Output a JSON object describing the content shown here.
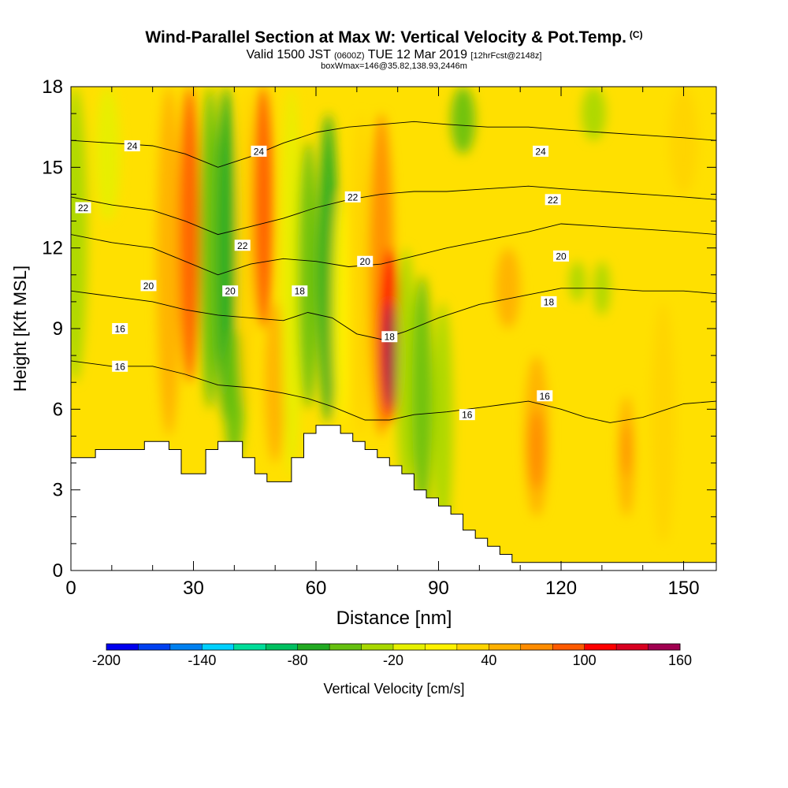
{
  "header": {
    "title": "Wind-Parallel Section at Max W: Vertical Velocity & Pot.Temp.",
    "copyright": "(C)",
    "valid_prefix": "Valid 1500 JST",
    "valid_utc": "(0600Z)",
    "valid_date": "TUE 12 Mar 2019",
    "forecast": "[12hrFcst@2148z]",
    "boxinfo": "boxWmax=146@35.82,138.93,2446m"
  },
  "chart_data": {
    "type": "heatmap",
    "title": "Wind-Parallel Section at Max W: Vertical Velocity & Pot.Temp.",
    "xlabel": "Distance [nm]",
    "ylabel": "Height [Kft MSL]",
    "xlim": [
      0,
      158
    ],
    "ylim": [
      0,
      18
    ],
    "x_ticks": [
      0,
      30,
      60,
      90,
      120,
      150
    ],
    "y_ticks": [
      0,
      3,
      6,
      9,
      12,
      15,
      18
    ],
    "colorbar": {
      "label": "Vertical Velocity [cm/s]",
      "min": -200,
      "max": 160,
      "step": 20,
      "tick_labels": [
        "-200",
        "-140",
        "-80",
        "-20",
        "40",
        "100",
        "160"
      ],
      "colors": [
        "#0000ee",
        "#0040f0",
        "#0080f0",
        "#00d0ff",
        "#00dd99",
        "#00c060",
        "#22aa22",
        "#66c010",
        "#a8d800",
        "#e6f000",
        "#fff200",
        "#ffd400",
        "#ffb000",
        "#ff8c00",
        "#ff5a00",
        "#ff0000",
        "#d80020",
        "#a00050",
        "#500090"
      ]
    },
    "velocity_bands": [
      {
        "x": 1,
        "y0": 7,
        "y1": 18,
        "w": 3,
        "v": -30
      },
      {
        "x": 9,
        "y0": 13,
        "y1": 18,
        "w": 3,
        "v": -20
      },
      {
        "x": 24,
        "y0": 5,
        "y1": 18,
        "w": 3,
        "v": 50
      },
      {
        "x": 29,
        "y0": 7,
        "y1": 18,
        "w": 2.5,
        "v": 90
      },
      {
        "x": 34,
        "y0": 6,
        "y1": 18,
        "w": 2.5,
        "v": -50
      },
      {
        "x": 38,
        "y0": 5.5,
        "y1": 18,
        "w": 2.5,
        "v": -80
      },
      {
        "x": 40,
        "y0": 4,
        "y1": 9,
        "w": 2.5,
        "v": -60
      },
      {
        "x": 43,
        "y0": 6,
        "y1": 18,
        "w": 2,
        "v": 20
      },
      {
        "x": 47,
        "y0": 9,
        "y1": 18,
        "w": 2.5,
        "v": 90
      },
      {
        "x": 50,
        "y0": 4,
        "y1": 10,
        "w": 2.5,
        "v": 40
      },
      {
        "x": 54,
        "y0": 3.5,
        "y1": 18,
        "w": 2.5,
        "v": -20
      },
      {
        "x": 58,
        "y0": 6,
        "y1": 16,
        "w": 2.5,
        "v": -60
      },
      {
        "x": 63,
        "y0": 5.5,
        "y1": 17,
        "w": 2.5,
        "v": -80
      },
      {
        "x": 66,
        "y0": 5.5,
        "y1": 14,
        "w": 2,
        "v": 10
      },
      {
        "x": 71,
        "y0": 5,
        "y1": 17,
        "w": 2.5,
        "v": 30
      },
      {
        "x": 76,
        "y0": 5,
        "y1": 17,
        "w": 3,
        "v": 70
      },
      {
        "x": 78,
        "y0": 5.5,
        "y1": 12,
        "w": 2.5,
        "v": 110
      },
      {
        "x": 78,
        "y0": 6,
        "y1": 10,
        "w": 1.5,
        "v": 150
      },
      {
        "x": 82,
        "y0": 3,
        "y1": 12,
        "w": 2.5,
        "v": -30
      },
      {
        "x": 86,
        "y0": 2,
        "y1": 11,
        "w": 2.5,
        "v": -60
      },
      {
        "x": 91,
        "y0": 1,
        "y1": 10,
        "w": 2.5,
        "v": -30
      },
      {
        "x": 96,
        "y0": 15.5,
        "y1": 18,
        "w": 3,
        "v": -60
      },
      {
        "x": 107,
        "y0": 9,
        "y1": 12,
        "w": 3,
        "v": 40
      },
      {
        "x": 114,
        "y0": 2,
        "y1": 8,
        "w": 3,
        "v": 40
      },
      {
        "x": 114,
        "y0": 3,
        "y1": 6,
        "w": 2,
        "v": 60
      },
      {
        "x": 124,
        "y0": 10,
        "y1": 11.5,
        "w": 2,
        "v": -30
      },
      {
        "x": 130,
        "y0": 9.5,
        "y1": 11.5,
        "w": 2,
        "v": -30
      },
      {
        "x": 128,
        "y0": 16,
        "y1": 18,
        "w": 3,
        "v": -30
      },
      {
        "x": 136,
        "y0": 2,
        "y1": 6.5,
        "w": 2,
        "v": 40
      },
      {
        "x": 136,
        "y0": 3.5,
        "y1": 5.5,
        "w": 1,
        "v": 60
      },
      {
        "x": 145,
        "y0": 1,
        "y1": 10,
        "w": 3,
        "v": 30
      },
      {
        "x": 150,
        "y0": 14,
        "y1": 18,
        "w": 3.5,
        "v": 30
      }
    ],
    "terrain": [
      [
        0,
        4.2
      ],
      [
        6,
        4.2
      ],
      [
        6,
        4.5
      ],
      [
        18,
        4.5
      ],
      [
        18,
        4.8
      ],
      [
        24,
        4.8
      ],
      [
        24,
        4.5
      ],
      [
        27,
        4.5
      ],
      [
        27,
        3.6
      ],
      [
        33,
        3.6
      ],
      [
        33,
        4.5
      ],
      [
        36,
        4.5
      ],
      [
        36,
        4.8
      ],
      [
        42,
        4.8
      ],
      [
        42,
        4.2
      ],
      [
        45,
        4.2
      ],
      [
        45,
        3.6
      ],
      [
        48,
        3.6
      ],
      [
        48,
        3.3
      ],
      [
        54,
        3.3
      ],
      [
        54,
        4.2
      ],
      [
        57,
        4.2
      ],
      [
        57,
        5.1
      ],
      [
        60,
        5.1
      ],
      [
        60,
        5.4
      ],
      [
        66,
        5.4
      ],
      [
        66,
        5.1
      ],
      [
        69,
        5.1
      ],
      [
        69,
        4.8
      ],
      [
        72,
        4.8
      ],
      [
        72,
        4.5
      ],
      [
        75,
        4.5
      ],
      [
        75,
        4.2
      ],
      [
        78,
        4.2
      ],
      [
        78,
        3.9
      ],
      [
        81,
        3.9
      ],
      [
        81,
        3.6
      ],
      [
        84,
        3.6
      ],
      [
        84,
        3
      ],
      [
        87,
        3
      ],
      [
        87,
        2.7
      ],
      [
        90,
        2.7
      ],
      [
        90,
        2.4
      ],
      [
        93,
        2.4
      ],
      [
        93,
        2.1
      ],
      [
        96,
        2.1
      ],
      [
        96,
        1.5
      ],
      [
        99,
        1.5
      ],
      [
        99,
        1.2
      ],
      [
        102,
        1.2
      ],
      [
        102,
        0.9
      ],
      [
        105,
        0.9
      ],
      [
        105,
        0.6
      ],
      [
        108,
        0.6
      ],
      [
        108,
        0.3
      ],
      [
        158,
        0.3
      ]
    ],
    "contours": [
      {
        "label": "16",
        "points": [
          [
            0,
            7.8
          ],
          [
            10,
            7.6
          ],
          [
            20,
            7.6
          ],
          [
            28,
            7.3
          ],
          [
            36,
            6.9
          ],
          [
            44,
            6.8
          ],
          [
            52,
            6.6
          ],
          [
            58,
            6.4
          ],
          [
            64,
            6.1
          ],
          [
            72,
            5.6
          ],
          [
            78,
            5.6
          ],
          [
            84,
            5.8
          ],
          [
            92,
            5.9
          ],
          [
            102,
            6.1
          ],
          [
            112,
            6.3
          ],
          [
            120,
            6.0
          ],
          [
            126,
            5.7
          ],
          [
            132,
            5.5
          ],
          [
            140,
            5.7
          ],
          [
            150,
            6.2
          ],
          [
            158,
            6.3
          ]
        ]
      },
      {
        "label": "18",
        "points": [
          [
            0,
            10.4
          ],
          [
            10,
            10.2
          ],
          [
            20,
            10
          ],
          [
            28,
            9.7
          ],
          [
            36,
            9.5
          ],
          [
            44,
            9.4
          ],
          [
            52,
            9.3
          ],
          [
            58,
            9.6
          ],
          [
            64,
            9.4
          ],
          [
            70,
            8.8
          ],
          [
            76,
            8.6
          ],
          [
            82,
            8.9
          ],
          [
            90,
            9.4
          ],
          [
            100,
            9.9
          ],
          [
            110,
            10.2
          ],
          [
            120,
            10.5
          ],
          [
            130,
            10.5
          ],
          [
            140,
            10.4
          ],
          [
            150,
            10.4
          ],
          [
            158,
            10.3
          ]
        ]
      },
      {
        "label": "20",
        "points": [
          [
            0,
            12.5
          ],
          [
            10,
            12.2
          ],
          [
            20,
            12
          ],
          [
            28,
            11.5
          ],
          [
            36,
            11
          ],
          [
            44,
            11.4
          ],
          [
            52,
            11.6
          ],
          [
            60,
            11.5
          ],
          [
            68,
            11.3
          ],
          [
            76,
            11.4
          ],
          [
            84,
            11.7
          ],
          [
            92,
            12
          ],
          [
            102,
            12.3
          ],
          [
            112,
            12.6
          ],
          [
            120,
            12.9
          ],
          [
            130,
            12.8
          ],
          [
            140,
            12.7
          ],
          [
            150,
            12.6
          ],
          [
            158,
            12.5
          ]
        ]
      },
      {
        "label": "22",
        "points": [
          [
            0,
            13.9
          ],
          [
            10,
            13.6
          ],
          [
            20,
            13.4
          ],
          [
            28,
            13
          ],
          [
            36,
            12.5
          ],
          [
            44,
            12.8
          ],
          [
            52,
            13.1
          ],
          [
            60,
            13.5
          ],
          [
            68,
            13.8
          ],
          [
            76,
            14.0
          ],
          [
            84,
            14.1
          ],
          [
            92,
            14.1
          ],
          [
            102,
            14.2
          ],
          [
            112,
            14.3
          ],
          [
            120,
            14.2
          ],
          [
            130,
            14.1
          ],
          [
            140,
            14.0
          ],
          [
            150,
            13.9
          ],
          [
            158,
            13.8
          ]
        ]
      },
      {
        "label": "24",
        "points": [
          [
            0,
            16.0
          ],
          [
            10,
            15.9
          ],
          [
            20,
            15.8
          ],
          [
            28,
            15.5
          ],
          [
            36,
            15.0
          ],
          [
            44,
            15.4
          ],
          [
            52,
            15.9
          ],
          [
            60,
            16.3
          ],
          [
            68,
            16.5
          ],
          [
            76,
            16.6
          ],
          [
            84,
            16.7
          ],
          [
            92,
            16.6
          ],
          [
            102,
            16.5
          ],
          [
            112,
            16.5
          ],
          [
            120,
            16.4
          ],
          [
            130,
            16.3
          ],
          [
            140,
            16.2
          ],
          [
            150,
            16.1
          ],
          [
            158,
            16.0
          ]
        ]
      }
    ],
    "contour_labels": [
      {
        "text": "24",
        "x": 15,
        "y": 15.8
      },
      {
        "text": "24",
        "x": 46,
        "y": 15.6
      },
      {
        "text": "24",
        "x": 115,
        "y": 15.6
      },
      {
        "text": "22",
        "x": 3,
        "y": 13.5
      },
      {
        "text": "22",
        "x": 69,
        "y": 13.9
      },
      {
        "text": "22",
        "x": 42,
        "y": 12.1
      },
      {
        "text": "22",
        "x": 118,
        "y": 13.8
      },
      {
        "text": "20",
        "x": 19,
        "y": 10.6
      },
      {
        "text": "20",
        "x": 39,
        "y": 10.4
      },
      {
        "text": "20",
        "x": 72,
        "y": 11.5
      },
      {
        "text": "20",
        "x": 120,
        "y": 11.7
      },
      {
        "text": "18",
        "x": 56,
        "y": 10.4
      },
      {
        "text": "18",
        "x": 78,
        "y": 8.7
      },
      {
        "text": "18",
        "x": 117,
        "y": 10.0
      },
      {
        "text": "16",
        "x": 12,
        "y": 9.0
      },
      {
        "text": "16",
        "x": 12,
        "y": 7.6
      },
      {
        "text": "16",
        "x": 97,
        "y": 5.8
      },
      {
        "text": "16",
        "x": 116,
        "y": 6.5
      }
    ]
  }
}
